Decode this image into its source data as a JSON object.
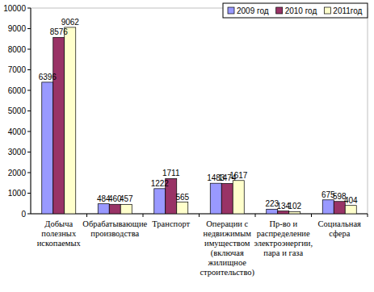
{
  "chart_data": {
    "type": "bar",
    "categories": [
      "Добыча полезных ископаемых",
      "Обрабатывающие производства",
      "Транспорт",
      "Операции с недвижимым имуществом (включая жилищное строительство)",
      "Пр-во и распределение электроэнергии, пара и газа",
      "Социальная сфера"
    ],
    "series": [
      {
        "name": "2009 год",
        "color": "#9999ff",
        "values": [
          6396,
          484,
          1222,
          1483,
          223,
          675
        ]
      },
      {
        "name": "2010 год",
        "color": "#993366",
        "values": [
          8576,
          460,
          1711,
          1474,
          134,
          598
        ]
      },
      {
        "name": "2011год",
        "color": "#ffffcc",
        "values": [
          9062,
          457,
          565,
          1617,
          102,
          404
        ]
      }
    ],
    "ylim": [
      0,
      10000
    ],
    "yticks": [
      0,
      1000,
      2000,
      3000,
      4000,
      5000,
      6000,
      7000,
      8000,
      9000,
      10000
    ],
    "grid": false,
    "legend": "top-right",
    "data_labels": true
  }
}
